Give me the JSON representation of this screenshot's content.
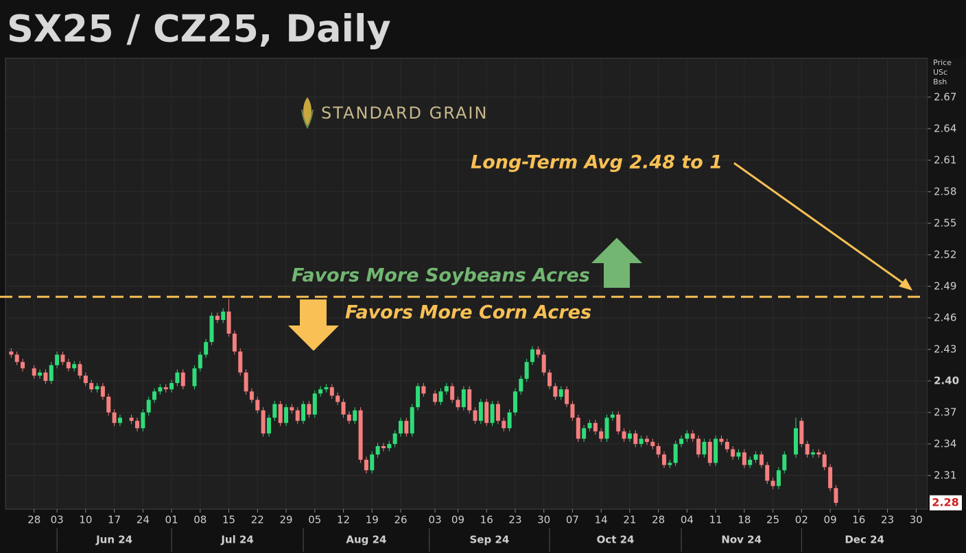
{
  "chart_data": {
    "type": "candlestick",
    "title": "SX25 / CZ25, Daily",
    "y_axis_label": [
      "Price",
      "USc",
      "Bsh"
    ],
    "logo": "STANDARD GRAIN",
    "colors": {
      "up": "#2fdc78",
      "down": "#f47f7f"
    },
    "hline": {
      "value": 2.48,
      "color": "#f8c055"
    },
    "annotations": [
      {
        "text": "Long-Term Avg 2.48 to 1",
        "color": "#f8c055"
      },
      {
        "text": "Favors More Soybeans Acres",
        "color": "#72b672"
      },
      {
        "text": "Favors More Corn Acres",
        "color": "#f8c055"
      }
    ],
    "last_value_label": "2.28",
    "xlim": [
      "2024-05-21",
      "2025-01-01"
    ],
    "ylim": [
      2.278,
      2.707
    ],
    "yticks": [
      2.31,
      2.34,
      2.37,
      {
        "value": 2.4,
        "label": "2.40"
      },
      2.43,
      2.46,
      2.49,
      2.52,
      2.55,
      2.58,
      2.61,
      2.64,
      2.67
    ],
    "xticks": [
      {
        "value": "2024-05-28",
        "label": "28"
      },
      {
        "value": "2024-06-03",
        "label": "03"
      },
      {
        "value": "2024-06-10",
        "label": "10"
      },
      {
        "value": "2024-06-17",
        "label": "17"
      },
      {
        "value": "2024-06-24",
        "label": "24"
      },
      {
        "value": "2024-07-01",
        "label": "01"
      },
      {
        "value": "2024-07-08",
        "label": "08"
      },
      {
        "value": "2024-07-15",
        "label": "15"
      },
      {
        "value": "2024-07-22",
        "label": "22"
      },
      {
        "value": "2024-07-29",
        "label": "29"
      },
      {
        "value": "2024-08-05",
        "label": "05"
      },
      {
        "value": "2024-08-12",
        "label": "12"
      },
      {
        "value": "2024-08-19",
        "label": "19"
      },
      {
        "value": "2024-08-26",
        "label": "26"
      },
      {
        "value": "2024-09-03",
        "label": "03"
      },
      {
        "value": "2024-09-09",
        "label": "09"
      },
      {
        "value": "2024-09-16",
        "label": "16"
      },
      {
        "value": "2024-09-23",
        "label": "23"
      },
      {
        "value": "2024-09-30",
        "label": "30"
      },
      {
        "value": "2024-10-07",
        "label": "07"
      },
      {
        "value": "2024-10-14",
        "label": "14"
      },
      {
        "value": "2024-10-21",
        "label": "21"
      },
      {
        "value": "2024-10-28",
        "label": "28"
      },
      {
        "value": "2024-11-04",
        "label": "04"
      },
      {
        "value": "2024-11-11",
        "label": "11"
      },
      {
        "value": "2024-11-18",
        "label": "18"
      },
      {
        "value": "2024-11-25",
        "label": "25"
      },
      {
        "value": "2024-12-02",
        "label": "02"
      },
      {
        "value": "2024-12-09",
        "label": "09"
      },
      {
        "value": "2024-12-16",
        "label": "16"
      },
      {
        "value": "2024-12-23",
        "label": "23"
      },
      {
        "value": "2024-12-30",
        "label": "30"
      }
    ],
    "month_ticks": [
      {
        "value": "2024-06-01",
        "label": "Jun 24"
      },
      {
        "value": "2024-07-01",
        "label": "Jul 24"
      },
      {
        "value": "2024-08-01",
        "label": "Aug 24"
      },
      {
        "value": "2024-09-01",
        "label": "Sep 24"
      },
      {
        "value": "2024-10-01",
        "label": "Oct 24"
      },
      {
        "value": "2024-11-01",
        "label": "Nov 24"
      },
      {
        "value": "2024-12-01",
        "label": "Dec 24"
      }
    ],
    "x": [
      "2024-05-22",
      "2024-05-23",
      "2024-05-24",
      "2024-05-28",
      "2024-05-29",
      "2024-05-30",
      "2024-05-31",
      "2024-06-03",
      "2024-06-04",
      "2024-06-05",
      "2024-06-06",
      "2024-06-07",
      "2024-06-10",
      "2024-06-11",
      "2024-06-12",
      "2024-06-13",
      "2024-06-14",
      "2024-06-17",
      "2024-06-18",
      "2024-06-20",
      "2024-06-21",
      "2024-06-24",
      "2024-06-25",
      "2024-06-26",
      "2024-06-27",
      "2024-06-28",
      "2024-07-01",
      "2024-07-02",
      "2024-07-03",
      "2024-07-05",
      "2024-07-08",
      "2024-07-09",
      "2024-07-10",
      "2024-07-11",
      "2024-07-12",
      "2024-07-15",
      "2024-07-16",
      "2024-07-17",
      "2024-07-18",
      "2024-07-19",
      "2024-07-22",
      "2024-07-23",
      "2024-07-24",
      "2024-07-25",
      "2024-07-26",
      "2024-07-29",
      "2024-07-30",
      "2024-07-31",
      "2024-08-01",
      "2024-08-02",
      "2024-08-05",
      "2024-08-06",
      "2024-08-07",
      "2024-08-08",
      "2024-08-09",
      "2024-08-12",
      "2024-08-13",
      "2024-08-14",
      "2024-08-15",
      "2024-08-16",
      "2024-08-19",
      "2024-08-20",
      "2024-08-21",
      "2024-08-22",
      "2024-08-23",
      "2024-08-26",
      "2024-08-27",
      "2024-08-28",
      "2024-08-29",
      "2024-08-30",
      "2024-09-03",
      "2024-09-04",
      "2024-09-05",
      "2024-09-06",
      "2024-09-09",
      "2024-09-10",
      "2024-09-11",
      "2024-09-12",
      "2024-09-13",
      "2024-09-16",
      "2024-09-17",
      "2024-09-18",
      "2024-09-19",
      "2024-09-20",
      "2024-09-23",
      "2024-09-24",
      "2024-09-25",
      "2024-09-26",
      "2024-09-27",
      "2024-09-30",
      "2024-10-01",
      "2024-10-02",
      "2024-10-03",
      "2024-10-04",
      "2024-10-07",
      "2024-10-08",
      "2024-10-09",
      "2024-10-10",
      "2024-10-11",
      "2024-10-14",
      "2024-10-15",
      "2024-10-16",
      "2024-10-17",
      "2024-10-18",
      "2024-10-21",
      "2024-10-22",
      "2024-10-23",
      "2024-10-24",
      "2024-10-25",
      "2024-10-28",
      "2024-10-29",
      "2024-10-30",
      "2024-10-31",
      "2024-11-01",
      "2024-11-04",
      "2024-11-05",
      "2024-11-06",
      "2024-11-07",
      "2024-11-08",
      "2024-11-11",
      "2024-11-12",
      "2024-11-13",
      "2024-11-14",
      "2024-11-15",
      "2024-11-18",
      "2024-11-19",
      "2024-11-20",
      "2024-11-21",
      "2024-11-22",
      "2024-11-25",
      "2024-11-26",
      "2024-11-27",
      "2024-11-29",
      "2024-12-02",
      "2024-12-03",
      "2024-12-04",
      "2024-12-05",
      "2024-12-06",
      "2024-12-09",
      "2024-12-10"
    ],
    "open": [
      2.428,
      2.425,
      2.418,
      2.412,
      2.405,
      2.408,
      2.4,
      2.415,
      2.425,
      2.418,
      2.412,
      2.416,
      2.405,
      2.398,
      2.392,
      2.395,
      2.385,
      2.37,
      2.36,
      2.365,
      2.362,
      2.355,
      2.37,
      2.382,
      2.39,
      2.394,
      2.392,
      2.398,
      2.408,
      2.395,
      2.412,
      2.425,
      2.437,
      2.462,
      2.458,
      2.466,
      2.445,
      2.428,
      2.408,
      2.39,
      2.382,
      2.372,
      2.35,
      2.365,
      2.378,
      2.36,
      2.375,
      2.372,
      2.362,
      2.378,
      2.368,
      2.388,
      2.392,
      2.394,
      2.386,
      2.38,
      2.368,
      2.362,
      2.372,
      2.325,
      2.315,
      2.33,
      2.338,
      2.336,
      2.34,
      2.35,
      2.362,
      2.35,
      2.375,
      2.395,
      2.388,
      2.38,
      2.39,
      2.395,
      2.382,
      2.375,
      2.392,
      2.372,
      2.362,
      2.38,
      2.36,
      2.378,
      2.362,
      2.355,
      2.37,
      2.39,
      2.402,
      2.418,
      2.43,
      2.425,
      2.408,
      2.395,
      2.385,
      2.392,
      2.378,
      2.365,
      2.345,
      2.355,
      2.36,
      2.352,
      2.345,
      2.365,
      2.368,
      2.352,
      2.345,
      2.35,
      2.34,
      2.345,
      2.342,
      2.338,
      2.33,
      2.32,
      2.322,
      2.34,
      2.345,
      2.35,
      2.345,
      2.33,
      2.342,
      2.322,
      2.345,
      2.342,
      2.335,
      2.328,
      2.332,
      2.32,
      2.325,
      2.33,
      2.32,
      2.305,
      2.3,
      2.315,
      2.33,
      2.362,
      2.34,
      2.33,
      2.332,
      2.33,
      2.318,
      2.298
    ],
    "high": [
      2.431,
      2.428,
      2.421,
      2.415,
      2.411,
      2.411,
      2.418,
      2.428,
      2.428,
      2.421,
      2.419,
      2.419,
      2.408,
      2.401,
      2.398,
      2.398,
      2.388,
      2.373,
      2.368,
      2.368,
      2.365,
      2.373,
      2.385,
      2.393,
      2.397,
      2.397,
      2.401,
      2.411,
      2.411,
      2.415,
      2.428,
      2.44,
      2.465,
      2.465,
      2.469,
      2.478,
      2.448,
      2.431,
      2.411,
      2.393,
      2.385,
      2.375,
      2.368,
      2.381,
      2.381,
      2.378,
      2.378,
      2.375,
      2.381,
      2.381,
      2.391,
      2.395,
      2.397,
      2.397,
      2.389,
      2.383,
      2.371,
      2.375,
      2.375,
      2.328,
      2.333,
      2.341,
      2.341,
      2.343,
      2.353,
      2.365,
      2.365,
      2.378,
      2.398,
      2.398,
      2.391,
      2.393,
      2.398,
      2.398,
      2.385,
      2.395,
      2.395,
      2.375,
      2.383,
      2.383,
      2.381,
      2.381,
      2.365,
      2.373,
      2.393,
      2.405,
      2.421,
      2.433,
      2.433,
      2.428,
      2.411,
      2.398,
      2.395,
      2.395,
      2.381,
      2.368,
      2.358,
      2.363,
      2.363,
      2.355,
      2.368,
      2.371,
      2.371,
      2.355,
      2.353,
      2.353,
      2.348,
      2.348,
      2.345,
      2.341,
      2.333,
      2.325,
      2.343,
      2.348,
      2.353,
      2.353,
      2.348,
      2.345,
      2.345,
      2.348,
      2.348,
      2.345,
      2.338,
      2.335,
      2.335,
      2.328,
      2.333,
      2.333,
      2.323,
      2.308,
      2.318,
      2.333,
      2.365,
      2.365,
      2.343,
      2.335,
      2.335,
      2.333,
      2.321,
      2.301
    ],
    "low": [
      2.422,
      2.415,
      2.409,
      2.402,
      2.402,
      2.397,
      2.397,
      2.412,
      2.415,
      2.409,
      2.409,
      2.402,
      2.395,
      2.389,
      2.389,
      2.382,
      2.367,
      2.357,
      2.357,
      2.359,
      2.352,
      2.352,
      2.367,
      2.379,
      2.387,
      2.389,
      2.389,
      2.395,
      2.392,
      2.392,
      2.409,
      2.422,
      2.434,
      2.455,
      2.455,
      2.442,
      2.425,
      2.405,
      2.387,
      2.379,
      2.369,
      2.347,
      2.347,
      2.362,
      2.357,
      2.357,
      2.369,
      2.359,
      2.359,
      2.365,
      2.365,
      2.385,
      2.389,
      2.383,
      2.377,
      2.365,
      2.359,
      2.359,
      2.322,
      2.312,
      2.312,
      2.327,
      2.333,
      2.333,
      2.337,
      2.347,
      2.347,
      2.347,
      2.372,
      2.385,
      2.377,
      2.377,
      2.387,
      2.379,
      2.372,
      2.372,
      2.369,
      2.359,
      2.359,
      2.357,
      2.357,
      2.359,
      2.352,
      2.352,
      2.367,
      2.387,
      2.399,
      2.415,
      2.422,
      2.405,
      2.392,
      2.382,
      2.382,
      2.375,
      2.362,
      2.342,
      2.342,
      2.352,
      2.349,
      2.342,
      2.342,
      2.362,
      2.349,
      2.342,
      2.342,
      2.337,
      2.337,
      2.339,
      2.335,
      2.327,
      2.317,
      2.317,
      2.319,
      2.337,
      2.342,
      2.342,
      2.327,
      2.327,
      2.319,
      2.319,
      2.339,
      2.332,
      2.325,
      2.325,
      2.317,
      2.317,
      2.322,
      2.317,
      2.302,
      2.297,
      2.297,
      2.312,
      2.327,
      2.337,
      2.327,
      2.327,
      2.327,
      2.315,
      2.295,
      2.281
    ],
    "close": [
      2.425,
      2.418,
      2.412,
      2.405,
      2.408,
      2.4,
      2.415,
      2.425,
      2.418,
      2.412,
      2.416,
      2.405,
      2.398,
      2.392,
      2.395,
      2.385,
      2.37,
      2.36,
      2.365,
      2.362,
      2.355,
      2.37,
      2.382,
      2.39,
      2.394,
      2.392,
      2.398,
      2.408,
      2.395,
      2.412,
      2.425,
      2.437,
      2.462,
      2.458,
      2.466,
      2.445,
      2.428,
      2.408,
      2.39,
      2.382,
      2.372,
      2.35,
      2.365,
      2.378,
      2.36,
      2.375,
      2.372,
      2.362,
      2.378,
      2.368,
      2.388,
      2.392,
      2.394,
      2.386,
      2.38,
      2.368,
      2.362,
      2.372,
      2.325,
      2.315,
      2.33,
      2.338,
      2.336,
      2.34,
      2.35,
      2.362,
      2.35,
      2.375,
      2.395,
      2.388,
      2.38,
      2.39,
      2.395,
      2.382,
      2.375,
      2.392,
      2.372,
      2.362,
      2.38,
      2.36,
      2.378,
      2.362,
      2.355,
      2.37,
      2.39,
      2.402,
      2.418,
      2.43,
      2.425,
      2.408,
      2.395,
      2.385,
      2.392,
      2.378,
      2.365,
      2.345,
      2.355,
      2.36,
      2.352,
      2.345,
      2.365,
      2.368,
      2.352,
      2.345,
      2.35,
      2.34,
      2.345,
      2.342,
      2.338,
      2.33,
      2.32,
      2.322,
      2.34,
      2.345,
      2.35,
      2.345,
      2.33,
      2.342,
      2.322,
      2.345,
      2.342,
      2.335,
      2.328,
      2.332,
      2.32,
      2.325,
      2.33,
      2.32,
      2.305,
      2.3,
      2.315,
      2.33,
      2.355,
      2.34,
      2.33,
      2.332,
      2.33,
      2.318,
      2.298,
      2.284
    ]
  }
}
